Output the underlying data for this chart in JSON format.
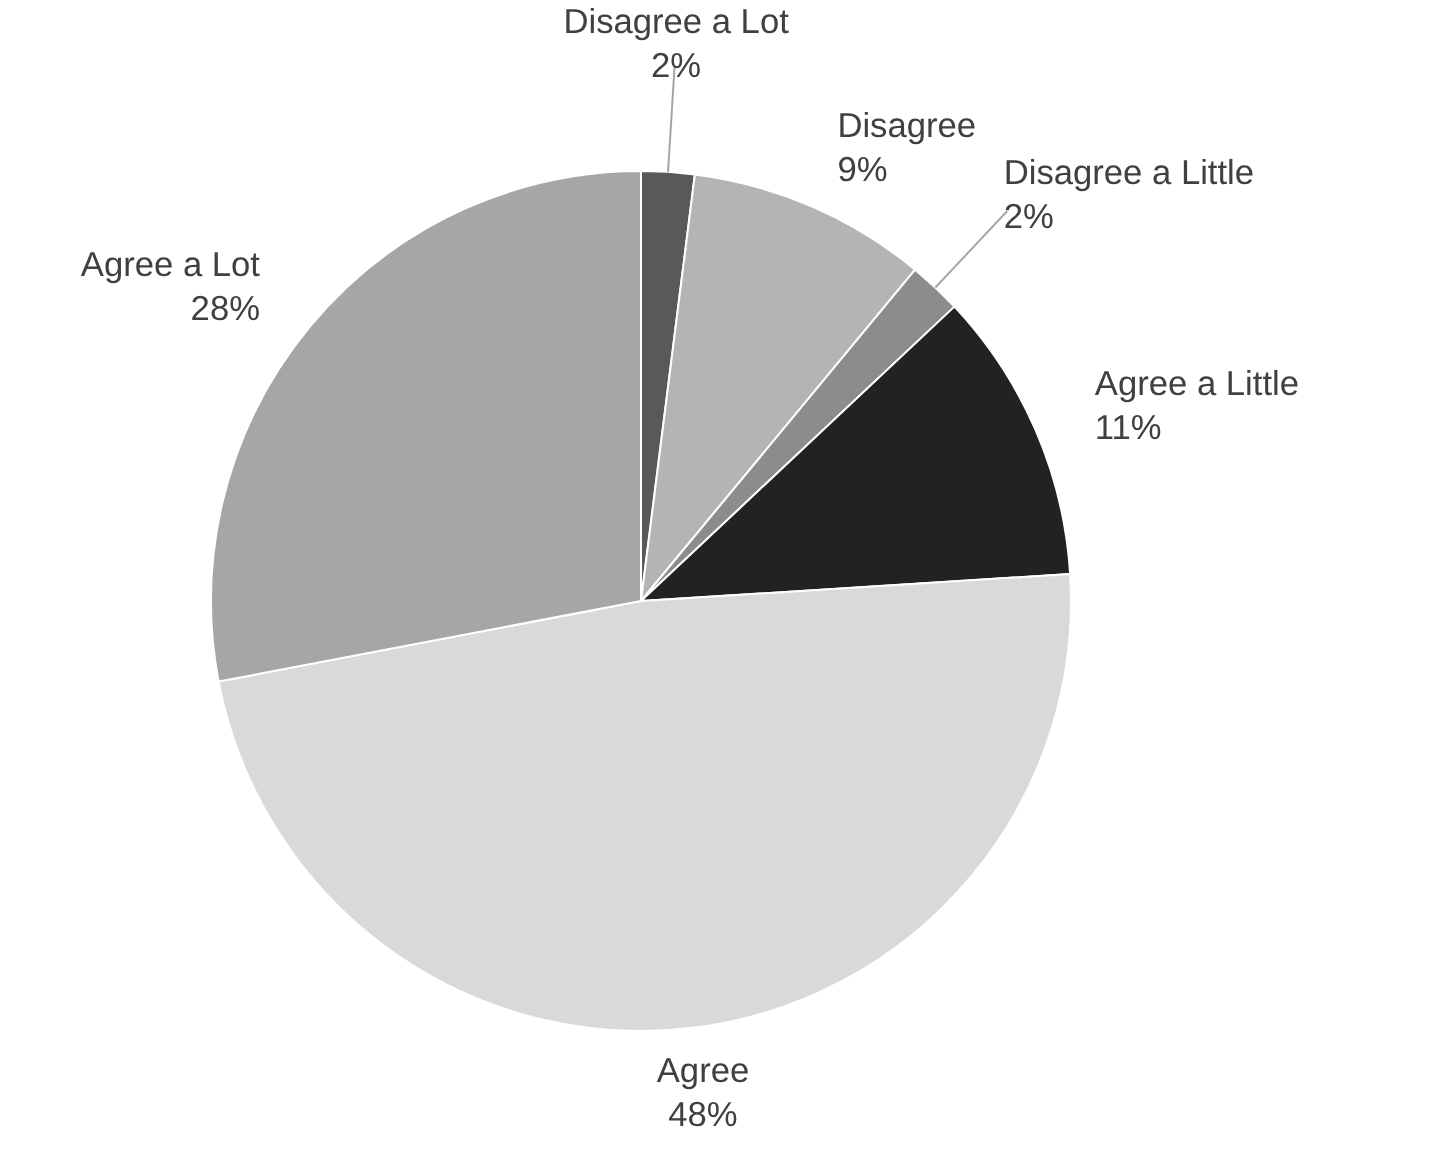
{
  "chart_data": {
    "type": "pie",
    "categories": [
      "Disagree a Lot",
      "Disagree",
      "Disagree a Little",
      "Agree a Little",
      "Agree",
      "Agree a Lot"
    ],
    "values": [
      2,
      9,
      2,
      11,
      48,
      28
    ],
    "value_labels": [
      "2%",
      "9%",
      "2%",
      "11%",
      "48%",
      "28%"
    ],
    "colors": [
      "#595959",
      "#b4b4b4",
      "#8c8c8c",
      "#222222",
      "#d9d9d9",
      "#a6a6a6"
    ],
    "legend": false
  }
}
